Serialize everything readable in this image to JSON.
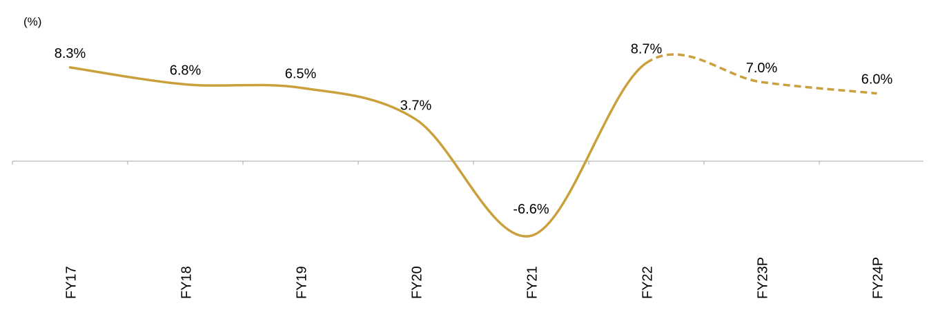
{
  "chart_data": {
    "type": "line",
    "title": "",
    "ylabel": "(%)",
    "xlabel": "",
    "categories": [
      "FY17",
      "FY18",
      "FY19",
      "FY20",
      "FY21",
      "FY22",
      "FY23P",
      "FY24P"
    ],
    "values": [
      8.3,
      6.8,
      6.5,
      3.7,
      -6.6,
      8.7,
      7.0,
      6.0
    ],
    "data_labels": [
      "8.3%",
      "6.8%",
      "6.5%",
      "3.7%",
      "-6.6%",
      "8.7%",
      "7.0%",
      "6.0%"
    ],
    "projected_from_index": 5,
    "line_style": {
      "actual": "solid",
      "projected": "dashed"
    },
    "ylim": [
      -11,
      14.4
    ],
    "grid": false,
    "legend": "none",
    "colors": {
      "line": "#C9A03C",
      "axis": "#A6A6A6",
      "text": "#000000"
    }
  }
}
